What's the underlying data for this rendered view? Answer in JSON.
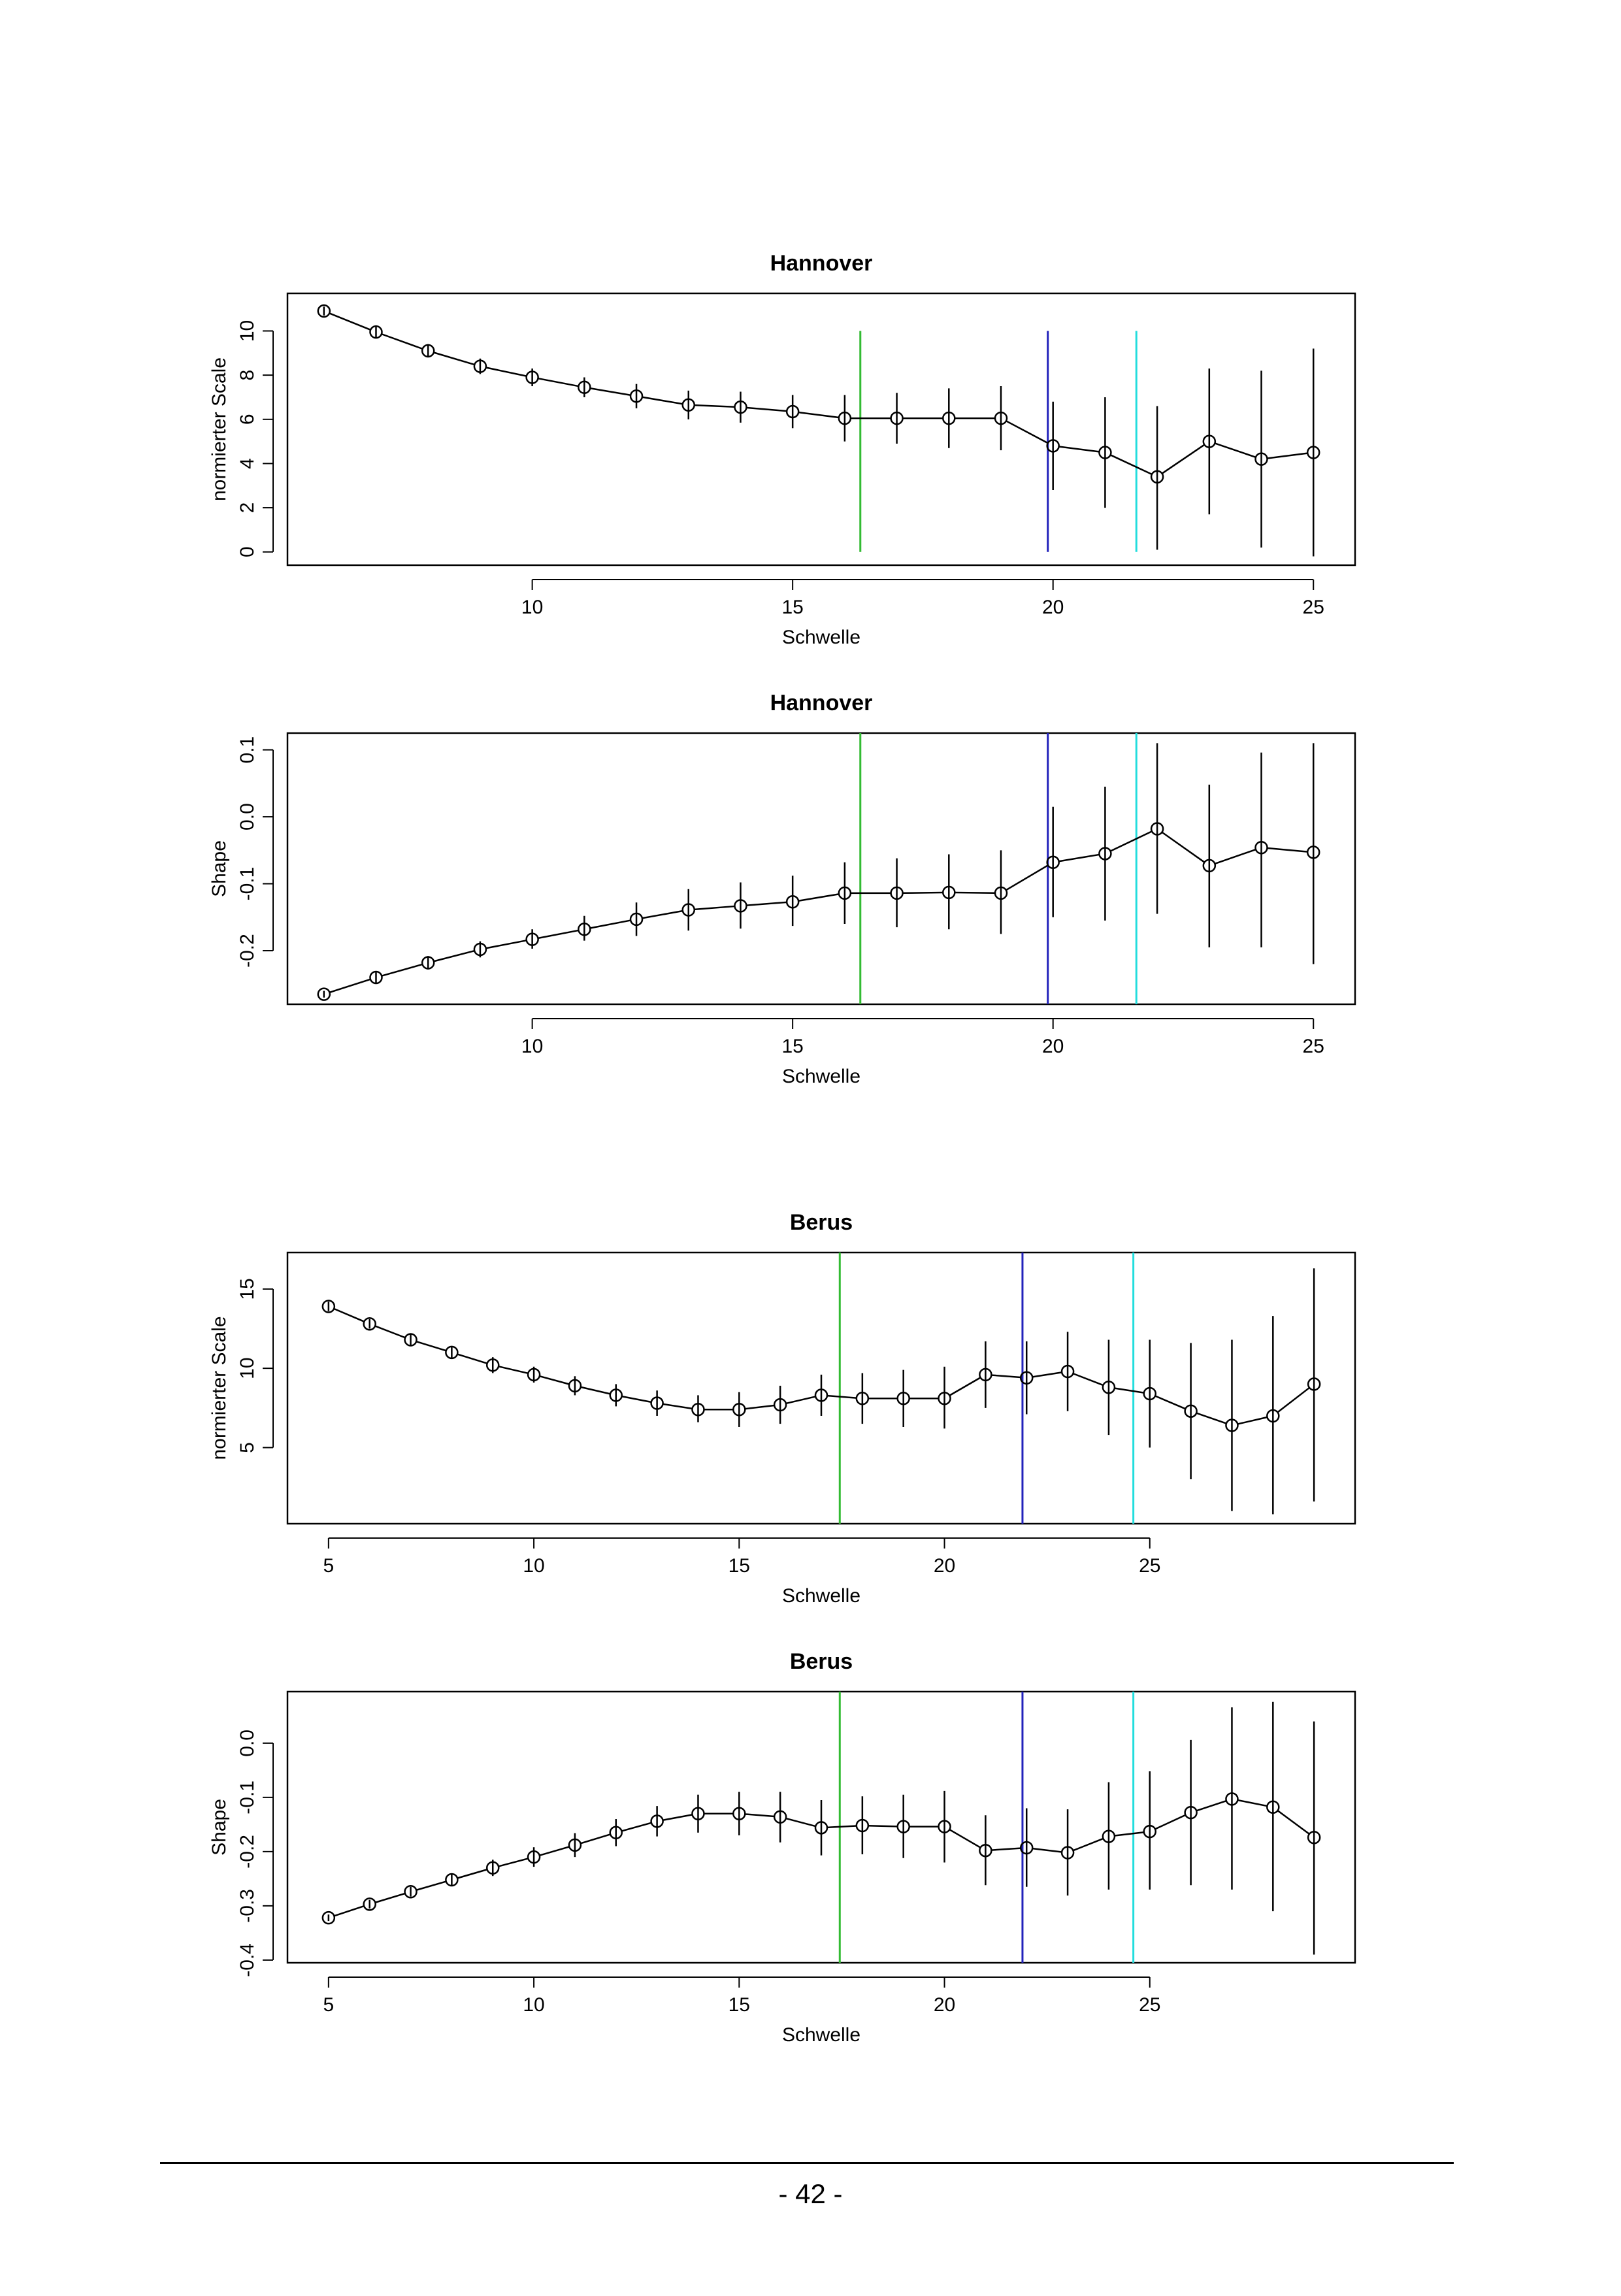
{
  "colors": {
    "green": "#33bb33",
    "blue": "#2222bb",
    "cyan": "#22dddd",
    "series": "#000000"
  },
  "page_number": "- 42 -",
  "chart_data": [
    {
      "type": "line",
      "title": "Hannover",
      "xlabel": "Schwelle",
      "ylabel": "normierter Scale",
      "xlim": [
        5.3,
        25.8
      ],
      "ylim": [
        -0.6,
        11.7
      ],
      "xticks": [
        10,
        15,
        20,
        25
      ],
      "yticks": [
        0,
        2,
        4,
        6,
        8,
        10
      ],
      "vlines": [
        {
          "x": 16.3,
          "color": "green",
          "range": [
            0,
            10
          ]
        },
        {
          "x": 19.9,
          "color": "blue",
          "range": [
            0,
            10
          ]
        },
        {
          "x": 21.6,
          "color": "cyan",
          "range": [
            0,
            10
          ]
        }
      ],
      "x": [
        6,
        7,
        8,
        9,
        10,
        11,
        12,
        13,
        14,
        15,
        16,
        17,
        18,
        19,
        20,
        21,
        22,
        23,
        24,
        25
      ],
      "y": [
        10.9,
        9.95,
        9.1,
        8.4,
        7.9,
        7.45,
        7.05,
        6.65,
        6.55,
        6.35,
        6.05,
        6.05,
        6.05,
        6.05,
        4.8,
        4.5,
        3.4,
        5.0,
        4.2,
        4.5
      ],
      "lower": [
        10.7,
        9.7,
        8.8,
        8.05,
        7.5,
        7.0,
        6.5,
        6.0,
        5.85,
        5.6,
        5.0,
        4.9,
        4.7,
        4.6,
        2.8,
        2.0,
        0.1,
        1.7,
        0.2,
        -0.2
      ],
      "upper": [
        11.1,
        10.2,
        9.4,
        8.75,
        8.3,
        7.9,
        7.6,
        7.3,
        7.25,
        7.1,
        7.1,
        7.2,
        7.4,
        7.5,
        6.8,
        7.0,
        6.6,
        8.3,
        8.2,
        9.2
      ]
    },
    {
      "type": "line",
      "title": "Hannover",
      "xlabel": "Schwelle",
      "ylabel": "Shape",
      "xlim": [
        5.3,
        25.8
      ],
      "ylim": [
        -0.28,
        0.125
      ],
      "xticks": [
        10,
        15,
        20,
        25
      ],
      "yticks": [
        -0.2,
        -0.1,
        0.0,
        0.1
      ],
      "ytick_labels": [
        "-0.2",
        "-0.1",
        "0.0",
        "0.1"
      ],
      "vlines": [
        {
          "x": 16.3,
          "color": "green"
        },
        {
          "x": 19.9,
          "color": "blue"
        },
        {
          "x": 21.6,
          "color": "cyan"
        }
      ],
      "x": [
        6,
        7,
        8,
        9,
        10,
        11,
        12,
        13,
        14,
        15,
        16,
        17,
        18,
        19,
        20,
        21,
        22,
        23,
        24,
        25
      ],
      "y": [
        -0.265,
        -0.24,
        -0.218,
        -0.198,
        -0.183,
        -0.168,
        -0.153,
        -0.139,
        -0.133,
        -0.127,
        -0.114,
        -0.114,
        -0.113,
        -0.114,
        -0.068,
        -0.055,
        -0.018,
        -0.073,
        -0.046,
        -0.053
      ],
      "lower": [
        -0.27,
        -0.248,
        -0.228,
        -0.21,
        -0.197,
        -0.185,
        -0.178,
        -0.17,
        -0.167,
        -0.163,
        -0.16,
        -0.165,
        -0.168,
        -0.175,
        -0.15,
        -0.155,
        -0.145,
        -0.195,
        -0.195,
        -0.22
      ],
      "upper": [
        -0.26,
        -0.232,
        -0.208,
        -0.186,
        -0.168,
        -0.148,
        -0.128,
        -0.108,
        -0.098,
        -0.088,
        -0.068,
        -0.062,
        -0.056,
        -0.05,
        0.015,
        0.045,
        0.11,
        0.048,
        0.096,
        0.11
      ]
    },
    {
      "type": "line",
      "title": "Berus",
      "xlabel": "Schwelle",
      "ylabel": "normierter Scale",
      "xlim": [
        4.0,
        30.0
      ],
      "ylim": [
        0.2,
        17.3
      ],
      "xticks": [
        5,
        10,
        15,
        20,
        25
      ],
      "yticks": [
        5,
        10,
        15
      ],
      "vlines": [
        {
          "x": 17.45,
          "color": "green"
        },
        {
          "x": 21.9,
          "color": "blue"
        },
        {
          "x": 24.6,
          "color": "cyan"
        }
      ],
      "x": [
        5,
        6,
        7,
        8,
        9,
        10,
        11,
        12,
        13,
        14,
        15,
        16,
        17,
        18,
        19,
        20,
        21,
        22,
        23,
        24,
        25,
        26,
        27,
        28,
        29
      ],
      "y": [
        13.9,
        12.8,
        11.8,
        11.0,
        10.2,
        9.6,
        8.9,
        8.3,
        7.8,
        7.4,
        7.4,
        7.7,
        8.3,
        8.1,
        8.1,
        8.1,
        9.6,
        9.4,
        9.8,
        8.8,
        8.4,
        7.3,
        6.4,
        7.0,
        9.0
      ],
      "lower": [
        13.6,
        12.5,
        11.4,
        10.6,
        9.7,
        9.1,
        8.3,
        7.6,
        7.0,
        6.6,
        6.3,
        6.5,
        7.0,
        6.5,
        6.3,
        6.2,
        7.5,
        7.1,
        7.3,
        5.8,
        5.0,
        3.0,
        1.0,
        0.8,
        1.6
      ],
      "upper": [
        14.2,
        13.1,
        12.2,
        11.4,
        10.7,
        10.1,
        9.5,
        9.0,
        8.6,
        8.3,
        8.5,
        8.9,
        9.6,
        9.7,
        9.9,
        10.1,
        11.7,
        11.7,
        12.3,
        11.8,
        11.8,
        11.6,
        11.8,
        13.3,
        16.3
      ]
    },
    {
      "type": "line",
      "title": "Berus",
      "xlabel": "Schwelle",
      "ylabel": "Shape",
      "xlim": [
        4.0,
        30.0
      ],
      "ylim": [
        -0.405,
        0.095
      ],
      "xticks": [
        5,
        10,
        15,
        20,
        25
      ],
      "yticks": [
        -0.4,
        -0.3,
        -0.2,
        -0.1,
        0.0
      ],
      "ytick_labels": [
        "-0.4",
        "-0.3",
        "-0.2",
        "-0.1",
        "0.0"
      ],
      "vlines": [
        {
          "x": 17.45,
          "color": "green"
        },
        {
          "x": 21.9,
          "color": "blue"
        },
        {
          "x": 24.6,
          "color": "cyan"
        }
      ],
      "x": [
        5,
        6,
        7,
        8,
        9,
        10,
        11,
        12,
        13,
        14,
        15,
        16,
        17,
        18,
        19,
        20,
        21,
        22,
        23,
        24,
        25,
        26,
        27,
        28,
        29
      ],
      "y": [
        -0.322,
        -0.297,
        -0.274,
        -0.252,
        -0.23,
        -0.21,
        -0.188,
        -0.165,
        -0.144,
        -0.13,
        -0.13,
        -0.136,
        -0.156,
        -0.152,
        -0.154,
        -0.154,
        -0.198,
        -0.193,
        -0.202,
        -0.172,
        -0.163,
        -0.128,
        -0.103,
        -0.118,
        -0.174
      ],
      "lower": [
        -0.328,
        -0.305,
        -0.283,
        -0.264,
        -0.245,
        -0.228,
        -0.21,
        -0.19,
        -0.172,
        -0.165,
        -0.17,
        -0.183,
        -0.207,
        -0.205,
        -0.212,
        -0.22,
        -0.262,
        -0.265,
        -0.281,
        -0.27,
        -0.27,
        -0.262,
        -0.27,
        -0.31,
        -0.39
      ],
      "upper": [
        -0.316,
        -0.289,
        -0.265,
        -0.24,
        -0.215,
        -0.192,
        -0.166,
        -0.14,
        -0.116,
        -0.095,
        -0.09,
        -0.09,
        -0.105,
        -0.098,
        -0.095,
        -0.088,
        -0.133,
        -0.12,
        -0.122,
        -0.072,
        -0.052,
        0.006,
        0.066,
        0.076,
        0.04
      ]
    }
  ]
}
